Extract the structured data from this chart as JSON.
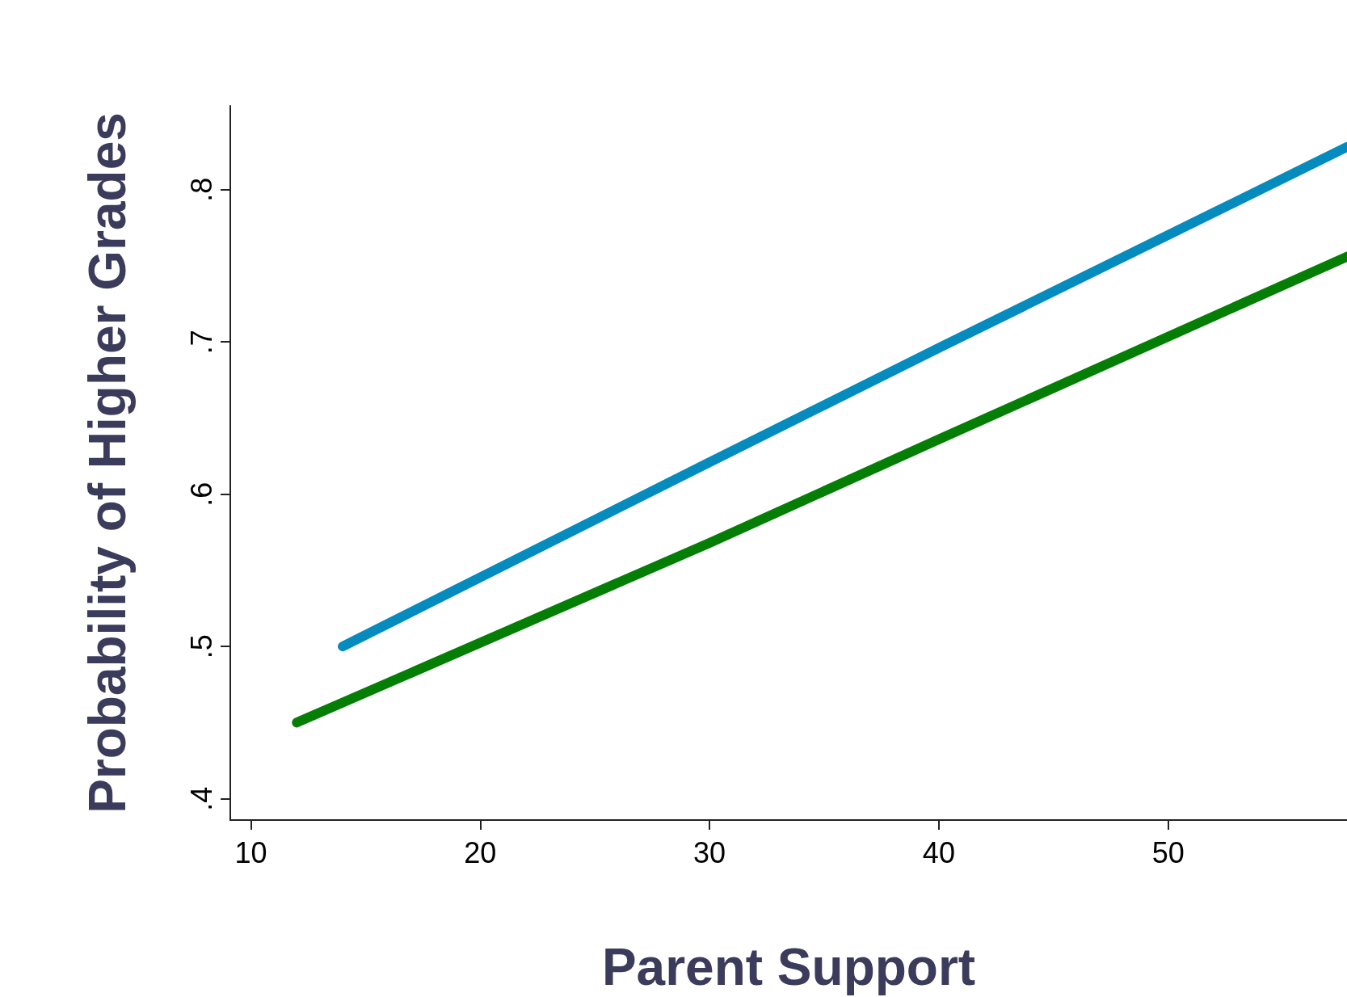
{
  "chart_data": {
    "type": "line",
    "xlabel": "Parent Support",
    "ylabel": "Probability of Higher Grades",
    "series": [
      {
        "color": "#058bbd",
        "x": [
          14,
          30,
          40,
          57.8
        ],
        "values": [
          0.5,
          0.621,
          0.696,
          0.828
        ]
      },
      {
        "color": "#047e04",
        "x": [
          12,
          30,
          40,
          57.8
        ],
        "values": [
          0.45,
          0.568,
          0.636,
          0.756
        ]
      }
    ],
    "xlim": [
      9.1,
      57.8
    ],
    "xticks": [
      10,
      20,
      30,
      40,
      50
    ],
    "ylim": [
      0.386,
      0.855
    ],
    "yticks": [
      {
        "value": 0.4,
        "label": ".4"
      },
      {
        "value": 0.5,
        "label": ".5"
      },
      {
        "value": 0.6,
        "label": ".6"
      },
      {
        "value": 0.7,
        "label": ".7"
      },
      {
        "value": 0.8,
        "label": ".8"
      }
    ],
    "grid": false,
    "line_style": "solid"
  }
}
